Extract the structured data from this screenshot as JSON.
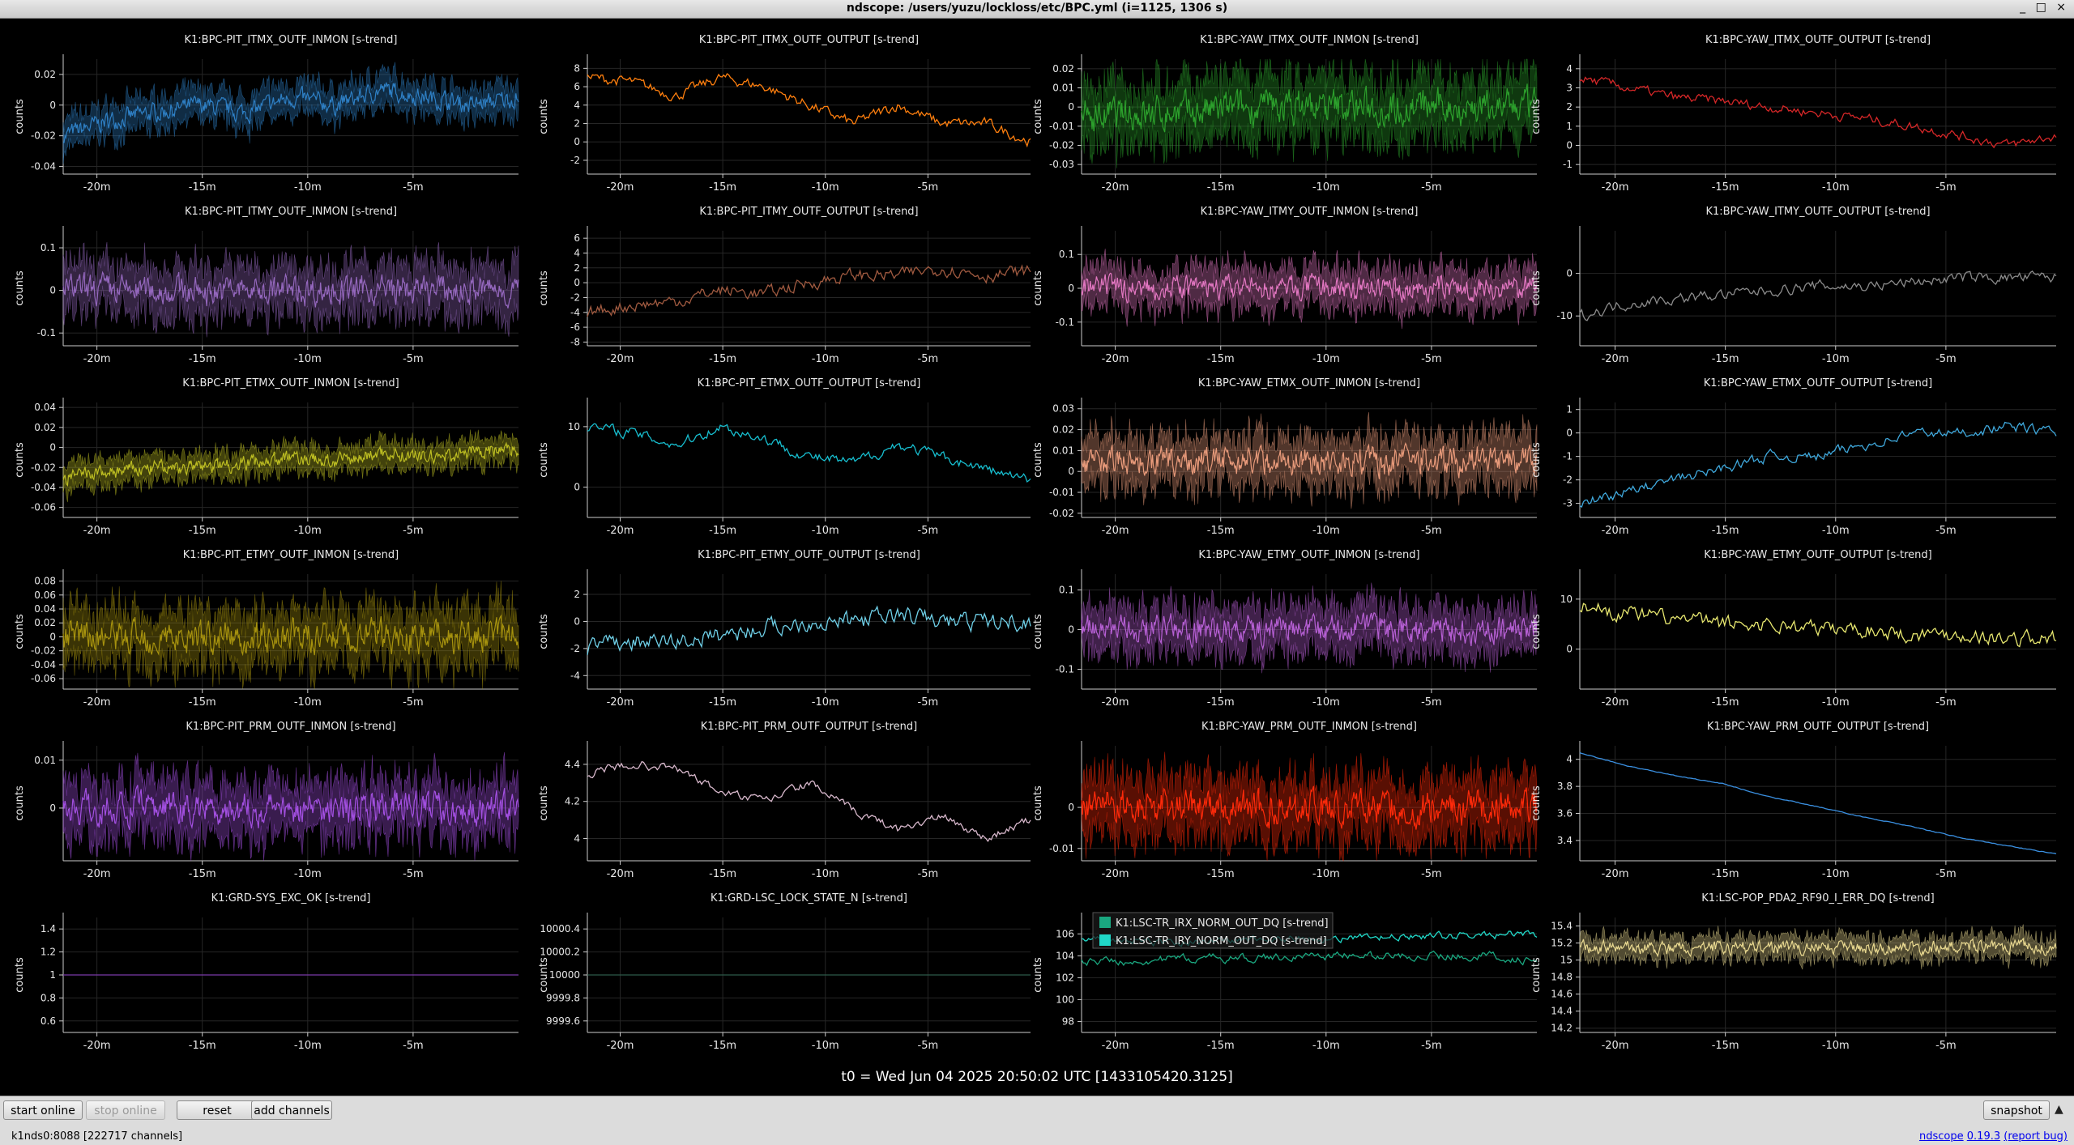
{
  "window": {
    "title": "ndscope: /users/yuzu/lockloss/etc/BPC.yml (i=1125, 1306 s)",
    "controls": "_ □ ×"
  },
  "t0": "t0 = Wed Jun 04 2025 20:50:02 UTC [1433105420.3125]",
  "toolbar": {
    "start_online": "start online",
    "stop_online": "stop online",
    "reset": "reset",
    "add_channels": "add channels",
    "snapshot": "snapshot",
    "arrow": "▲"
  },
  "status": {
    "server": "k1nds0:8088  [222717 channels]",
    "app": "ndscope",
    "version": "0.19.3",
    "report": "(report bug)"
  },
  "colors": {
    "background": "#000000",
    "axis": "#cccccc",
    "grid": "#2a2a2a"
  },
  "chart_data": [
    {
      "type": "line",
      "title": "K1:BPC-PIT_ITMX_OUTF_INMON [s-trend]",
      "ylabel": "counts",
      "xticks": [
        "-20m",
        "-15m",
        "-10m",
        "-5m"
      ],
      "yticks": [
        "0.02",
        "0",
        "-0.02",
        "-0.04"
      ],
      "ylim": [
        -0.045,
        0.03
      ],
      "color": "#2e7fc4",
      "band": true,
      "trend": [
        -0.02,
        -0.01,
        -0.005,
        0.0,
        -0.005,
        0.005,
        0.0,
        0.01,
        0.005,
        0.0,
        0.005
      ],
      "noise": 0.008
    },
    {
      "type": "line",
      "title": "K1:BPC-PIT_ITMX_OUTF_OUTPUT [s-trend]",
      "ylabel": "counts",
      "xticks": [
        "-20m",
        "-15m",
        "-10m",
        "-5m"
      ],
      "yticks": [
        "8",
        "6",
        "4",
        "2",
        "0",
        "-2"
      ],
      "ylim": [
        -3.5,
        9
      ],
      "color": "#ff7f0e",
      "band": false,
      "trend": [
        7,
        6.5,
        5,
        7,
        6,
        4,
        2,
        4,
        2,
        2,
        0
      ],
      "noise": 0.8
    },
    {
      "type": "line",
      "title": "K1:BPC-YAW_ITMX_OUTF_INMON [s-trend]",
      "ylabel": "counts",
      "xticks": [
        "-20m",
        "-15m",
        "-10m",
        "-5m"
      ],
      "yticks": [
        "0.02",
        "0.01",
        "0",
        "-0.01",
        "-0.02",
        "-0.03"
      ],
      "ylim": [
        -0.035,
        0.025
      ],
      "color": "#2ca02c",
      "band": true,
      "trend": [
        -0.005,
        -0.004,
        -0.003,
        -0.002,
        0.0,
        0.0,
        0.0,
        0.0,
        0.0,
        0.0,
        0.0
      ],
      "noise": 0.012
    },
    {
      "type": "line",
      "title": "K1:BPC-YAW_ITMX_OUTF_OUTPUT [s-trend]",
      "ylabel": "counts",
      "xticks": [
        "-20m",
        "-15m",
        "-10m",
        "-5m"
      ],
      "yticks": [
        "4",
        "3",
        "2",
        "1",
        "0",
        "-1"
      ],
      "ylim": [
        -1.5,
        4.5
      ],
      "color": "#d62728",
      "band": false,
      "trend": [
        3.5,
        3,
        2.5,
        2.3,
        2,
        1.7,
        1.4,
        1,
        0.5,
        0,
        0.5
      ],
      "noise": 0.35
    },
    {
      "type": "line",
      "title": "K1:BPC-PIT_ITMY_OUTF_INMON [s-trend]",
      "ylabel": "counts",
      "xticks": [
        "-20m",
        "-15m",
        "-10m",
        "-5m"
      ],
      "yticks": [
        "0.1",
        "0",
        "-0.1"
      ],
      "ylim": [
        -0.13,
        0.14
      ],
      "color": "#9467bd",
      "band": true,
      "trend": [
        0,
        0,
        0,
        0,
        0,
        0,
        0,
        0,
        0,
        0,
        0
      ],
      "noise": 0.045
    },
    {
      "type": "line",
      "title": "K1:BPC-PIT_ITMY_OUTF_OUTPUT [s-trend]",
      "ylabel": "counts",
      "xticks": [
        "-20m",
        "-15m",
        "-10m",
        "-5m"
      ],
      "yticks": [
        "6",
        "4",
        "2",
        "0",
        "-2",
        "-4",
        "-6",
        "-8"
      ],
      "ylim": [
        -8.5,
        7
      ],
      "color": "#a05a40",
      "band": false,
      "trend": [
        -4,
        -3,
        -2.5,
        -1,
        -1.5,
        0,
        1,
        1,
        2,
        1,
        1.5
      ],
      "noise": 1.2
    },
    {
      "type": "line",
      "title": "K1:BPC-YAW_ITMY_OUTF_INMON [s-trend]",
      "ylabel": "counts",
      "xticks": [
        "-20m",
        "-15m",
        "-10m",
        "-5m"
      ],
      "yticks": [
        "0.1",
        "0",
        "-0.1"
      ],
      "ylim": [
        -0.17,
        0.17
      ],
      "color": "#e377c2",
      "band": true,
      "trend": [
        0,
        0,
        0,
        0,
        0,
        0,
        0,
        0,
        0,
        0,
        0
      ],
      "noise": 0.045
    },
    {
      "type": "line",
      "title": "K1:BPC-YAW_ITMY_OUTF_OUTPUT [s-trend]",
      "ylabel": "counts",
      "xticks": [
        "-20m",
        "-15m",
        "-10m",
        "-5m"
      ],
      "yticks": [
        "0",
        "-10"
      ],
      "ylim": [
        -17,
        10
      ],
      "color": "#8c8c8c",
      "band": false,
      "trend": [
        -10,
        -7,
        -6,
        -5,
        -4,
        -3,
        -3,
        -2,
        -1,
        -1,
        -1
      ],
      "noise": 1.8
    },
    {
      "type": "line",
      "title": "K1:BPC-PIT_ETMX_OUTF_INMON [s-trend]",
      "ylabel": "counts",
      "xticks": [
        "-20m",
        "-15m",
        "-10m",
        "-5m"
      ],
      "yticks": [
        "0.04",
        "0.02",
        "0",
        "-0.02",
        "-0.04",
        "-0.06"
      ],
      "ylim": [
        -0.07,
        0.045
      ],
      "color": "#bcbd22",
      "band": true,
      "trend": [
        -0.03,
        -0.025,
        -0.02,
        -0.02,
        -0.015,
        -0.01,
        -0.015,
        -0.005,
        -0.01,
        -0.005,
        0.0
      ],
      "noise": 0.01
    },
    {
      "type": "line",
      "title": "K1:BPC-PIT_ETMX_OUTF_OUTPUT [s-trend]",
      "ylabel": "counts",
      "xticks": [
        "-20m",
        "-15m",
        "-10m",
        "-5m"
      ],
      "yticks": [
        "10",
        "0"
      ],
      "ylim": [
        -5,
        14
      ],
      "color": "#17becf",
      "band": false,
      "trend": [
        10,
        9,
        7,
        10,
        8,
        5,
        4,
        7,
        5,
        3,
        1
      ],
      "noise": 1.2
    },
    {
      "type": "line",
      "title": "K1:BPC-YAW_ETMX_OUTF_INMON [s-trend]",
      "ylabel": "counts",
      "xticks": [
        "-20m",
        "-15m",
        "-10m",
        "-5m"
      ],
      "yticks": [
        "0.03",
        "0.02",
        "0.01",
        "0",
        "-0.01",
        "-0.02"
      ],
      "ylim": [
        -0.022,
        0.033
      ],
      "color": "#e89a7a",
      "band": true,
      "trend": [
        0.005,
        0.005,
        0.005,
        0.005,
        0.005,
        0.005,
        0.005,
        0.005,
        0.005,
        0.005,
        0.005
      ],
      "noise": 0.009
    },
    {
      "type": "line",
      "title": "K1:BPC-YAW_ETMX_OUTF_OUTPUT [s-trend]",
      "ylabel": "counts",
      "xticks": [
        "-20m",
        "-15m",
        "-10m",
        "-5m"
      ],
      "yticks": [
        "1",
        "0",
        "-1",
        "-2",
        "-3"
      ],
      "ylim": [
        -3.6,
        1.3
      ],
      "color": "#3fa8dc",
      "band": false,
      "trend": [
        -3,
        -2.5,
        -2,
        -1.5,
        -1,
        -1,
        -0.5,
        0,
        0,
        0.3,
        0
      ],
      "noise": 0.3
    },
    {
      "type": "line",
      "title": "K1:BPC-PIT_ETMY_OUTF_INMON [s-trend]",
      "ylabel": "counts",
      "xticks": [
        "-20m",
        "-15m",
        "-10m",
        "-5m"
      ],
      "yticks": [
        "0.08",
        "0.06",
        "0.04",
        "0.02",
        "0",
        "-0.02",
        "-0.04",
        "-0.06"
      ],
      "ylim": [
        -0.075,
        0.09
      ],
      "color": "#a6920e",
      "band": true,
      "trend": [
        0,
        0,
        0,
        0,
        0,
        0,
        0,
        0,
        0,
        0,
        0
      ],
      "noise": 0.03
    },
    {
      "type": "line",
      "title": "K1:BPC-PIT_ETMY_OUTF_OUTPUT [s-trend]",
      "ylabel": "counts",
      "xticks": [
        "-20m",
        "-15m",
        "-10m",
        "-5m"
      ],
      "yticks": [
        "2",
        "0",
        "-2",
        "-4"
      ],
      "ylim": [
        -5,
        3.5
      ],
      "color": "#6fd0e8",
      "band": false,
      "trend": [
        -2,
        -1.5,
        -1.5,
        -1,
        -0.5,
        0,
        0,
        0.5,
        0,
        0,
        0
      ],
      "noise": 0.9
    },
    {
      "type": "line",
      "title": "K1:BPC-YAW_ETMY_OUTF_INMON [s-trend]",
      "ylabel": "counts",
      "xticks": [
        "-20m",
        "-15m",
        "-10m",
        "-5m"
      ],
      "yticks": [
        "0.1",
        "0",
        "-0.1"
      ],
      "ylim": [
        -0.15,
        0.14
      ],
      "color": "#b65fd4",
      "band": true,
      "trend": [
        0,
        0,
        0,
        0,
        0,
        0,
        0,
        0,
        0,
        0,
        0
      ],
      "noise": 0.045
    },
    {
      "type": "line",
      "title": "K1:BPC-YAW_ETMY_OUTF_OUTPUT [s-trend]",
      "ylabel": "counts",
      "xticks": [
        "-20m",
        "-15m",
        "-10m",
        "-5m"
      ],
      "yticks": [
        "10",
        "0"
      ],
      "ylim": [
        -8,
        15
      ],
      "color": "#e8e870",
      "band": false,
      "trend": [
        9,
        7,
        6,
        5,
        5,
        4,
        4,
        3,
        3,
        2,
        2
      ],
      "noise": 2.2
    },
    {
      "type": "line",
      "title": "K1:BPC-PIT_PRM_OUTF_INMON [s-trend]",
      "ylabel": "counts",
      "xticks": [
        "-20m",
        "-15m",
        "-10m",
        "-5m"
      ],
      "yticks": [
        "0.01",
        "0"
      ],
      "ylim": [
        -0.011,
        0.013
      ],
      "color": "#a24fe0",
      "band": true,
      "trend": [
        0,
        0,
        0,
        0,
        0,
        0,
        0,
        0,
        0,
        0,
        0
      ],
      "noise": 0.0045
    },
    {
      "type": "line",
      "title": "K1:BPC-PIT_PRM_OUTF_OUTPUT [s-trend]",
      "ylabel": "counts",
      "xticks": [
        "-20m",
        "-15m",
        "-10m",
        "-5m"
      ],
      "yticks": [
        "4.4",
        "4.2",
        "4"
      ],
      "ylim": [
        3.88,
        4.5
      ],
      "color": "#d8b8cc",
      "band": false,
      "trend": [
        4.35,
        4.4,
        4.38,
        4.25,
        4.2,
        4.3,
        4.15,
        4.05,
        4.12,
        4.0,
        4.1
      ],
      "noise": 0.03
    },
    {
      "type": "line",
      "title": "K1:BPC-YAW_PRM_OUTF_INMON [s-trend]",
      "ylabel": "counts",
      "xticks": [
        "-20m",
        "-15m",
        "-10m",
        "-5m"
      ],
      "yticks": [
        "0",
        "-0.01"
      ],
      "ylim": [
        -0.013,
        0.015
      ],
      "color": "#ff2a0a",
      "band": true,
      "trend": [
        0,
        0,
        0,
        0,
        0,
        0,
        0,
        0,
        0,
        0,
        0
      ],
      "noise": 0.0055
    },
    {
      "type": "line",
      "title": "K1:BPC-YAW_PRM_OUTF_OUTPUT [s-trend]",
      "ylabel": "counts",
      "xticks": [
        "-20m",
        "-15m",
        "-10m",
        "-5m"
      ],
      "yticks": [
        "4",
        "3.8",
        "3.6",
        "3.4"
      ],
      "ylim": [
        3.25,
        4.1
      ],
      "color": "#3a8fe0",
      "band": false,
      "trend": [
        4.05,
        3.95,
        3.88,
        3.82,
        3.72,
        3.65,
        3.57,
        3.5,
        3.42,
        3.36,
        3.3
      ],
      "noise": 0.004
    },
    {
      "type": "line",
      "title": "K1:GRD-SYS_EXC_OK [s-trend]",
      "ylabel": "counts",
      "xticks": [
        "-20m",
        "-15m",
        "-10m",
        "-5m"
      ],
      "yticks": [
        "1.4",
        "1.2",
        "1",
        "0.8",
        "0.6"
      ],
      "ylim": [
        0.5,
        1.5
      ],
      "color": "#7a3aa8",
      "band": false,
      "trend": [
        1,
        1,
        1,
        1,
        1,
        1,
        1,
        1,
        1,
        1,
        1
      ],
      "noise": 0
    },
    {
      "type": "line",
      "title": "K1:GRD-LSC_LOCK_STATE_N [s-trend]",
      "ylabel": "counts",
      "xticks": [
        "-20m",
        "-15m",
        "-10m",
        "-5m"
      ],
      "yticks": [
        "10000.4",
        "10000.2",
        "10000",
        "9999.8",
        "9999.6"
      ],
      "ylim": [
        9999.5,
        10000.5
      ],
      "color": "#2e5a4a",
      "band": false,
      "trend": [
        10000,
        10000,
        10000,
        10000,
        10000,
        10000,
        10000,
        10000,
        10000,
        10000,
        10000
      ],
      "noise": 0
    },
    {
      "type": "line",
      "title": "",
      "ylabel": "counts",
      "xticks": [
        "-20m",
        "-15m",
        "-10m",
        "-5m"
      ],
      "yticks": [
        "106",
        "104",
        "102",
        "100",
        "98"
      ],
      "ylim": [
        97,
        107.5
      ],
      "legend": [
        "K1:LSC-TR_IRX_NORM_OUT_DQ [s-trend]",
        "K1:LSC-TR_IRY_NORM_OUT_DQ [s-trend]"
      ],
      "series": [
        {
          "name": "K1:LSC-TR_IRX_NORM_OUT_DQ [s-trend]",
          "color": "#1aa880",
          "trend": [
            103.5,
            103.5,
            103.7,
            103.8,
            103.8,
            104,
            104,
            104,
            104,
            104,
            103.5
          ],
          "noise": 0.5
        },
        {
          "name": "K1:LSC-TR_IRY_NORM_OUT_DQ [s-trend]",
          "color": "#20d8c8",
          "trend": [
            105.5,
            105.3,
            105.2,
            105.4,
            105.5,
            105.6,
            105.6,
            105.7,
            105.8,
            105.9,
            106
          ],
          "noise": 0.45
        }
      ]
    },
    {
      "type": "line",
      "title": "K1:LSC-POP_PDA2_RF90_I_ERR_DQ [s-trend]",
      "ylabel": "counts",
      "xticks": [
        "-20m",
        "-15m",
        "-10m",
        "-5m"
      ],
      "yticks": [
        "15.4",
        "15.2",
        "15",
        "14.8",
        "14.6",
        "14.4",
        "14.2"
      ],
      "ylim": [
        14.15,
        15.5
      ],
      "color": "#e8d890",
      "band": true,
      "trend": [
        15.15,
        15.15,
        15.12,
        15.15,
        15.15,
        15.15,
        15.15,
        15.15,
        15.15,
        15.15,
        15.15
      ],
      "noise": 0.1
    }
  ]
}
